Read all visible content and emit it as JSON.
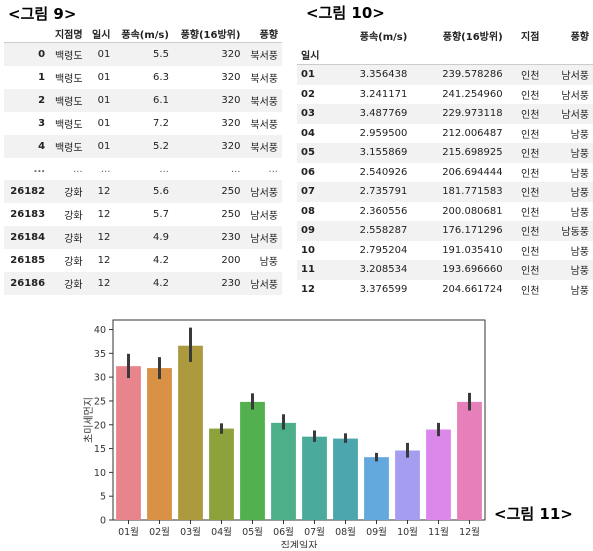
{
  "captions": {
    "fig9": "<그림 9>",
    "fig10": "<그림 10>",
    "fig11": "<그림 11>"
  },
  "table1": {
    "columns": [
      "",
      "지점명",
      "일시",
      "풍속(m/s)",
      "풍향(16방위)",
      "풍향"
    ],
    "rows": [
      [
        "0",
        "백령도",
        "01",
        "5.5",
        "320",
        "북서풍"
      ],
      [
        "1",
        "백령도",
        "01",
        "6.3",
        "320",
        "북서풍"
      ],
      [
        "2",
        "백령도",
        "01",
        "6.1",
        "320",
        "북서풍"
      ],
      [
        "3",
        "백령도",
        "01",
        "7.2",
        "320",
        "북서풍"
      ],
      [
        "4",
        "백령도",
        "01",
        "5.2",
        "320",
        "북서풍"
      ],
      [
        "...",
        "...",
        "...",
        "...",
        "...",
        "..."
      ],
      [
        "26182",
        "강화",
        "12",
        "5.6",
        "250",
        "남서풍"
      ],
      [
        "26183",
        "강화",
        "12",
        "5.7",
        "250",
        "남서풍"
      ],
      [
        "26184",
        "강화",
        "12",
        "4.9",
        "230",
        "남서풍"
      ],
      [
        "26185",
        "강화",
        "12",
        "4.2",
        "200",
        "남풍"
      ],
      [
        "26186",
        "강화",
        "12",
        "4.2",
        "230",
        "남서풍"
      ]
    ]
  },
  "table2": {
    "columns": [
      "",
      "풍속(m/s)",
      "풍향(16방위)",
      "지점",
      "풍향"
    ],
    "index_name": "일시",
    "rows": [
      [
        "01",
        "3.356438",
        "239.578286",
        "인천",
        "남서풍"
      ],
      [
        "02",
        "3.241171",
        "241.254960",
        "인천",
        "남서풍"
      ],
      [
        "03",
        "3.487769",
        "229.973118",
        "인천",
        "남서풍"
      ],
      [
        "04",
        "2.959500",
        "212.006487",
        "인천",
        "남풍"
      ],
      [
        "05",
        "3.155869",
        "215.698925",
        "인천",
        "남풍"
      ],
      [
        "06",
        "2.540926",
        "206.694444",
        "인천",
        "남풍"
      ],
      [
        "07",
        "2.735791",
        "181.771583",
        "인천",
        "남풍"
      ],
      [
        "08",
        "2.360556",
        "200.080681",
        "인천",
        "남풍"
      ],
      [
        "09",
        "2.558287",
        "176.171296",
        "인천",
        "남동풍"
      ],
      [
        "10",
        "2.795204",
        "191.035410",
        "인천",
        "남풍"
      ],
      [
        "11",
        "3.208534",
        "193.696660",
        "인천",
        "남풍"
      ],
      [
        "12",
        "3.376599",
        "204.661724",
        "인천",
        "남풍"
      ]
    ]
  },
  "chart_data": {
    "type": "bar",
    "categories": [
      "01월",
      "02월",
      "03월",
      "04월",
      "05월",
      "06월",
      "07월",
      "08월",
      "09월",
      "10월",
      "11월",
      "12월"
    ],
    "values": [
      32.3,
      31.9,
      36.6,
      19.2,
      24.8,
      20.4,
      17.5,
      17.1,
      13.2,
      14.6,
      19.0,
      24.8
    ],
    "err_low": [
      29.8,
      29.6,
      33.2,
      18.1,
      23.2,
      19.0,
      16.4,
      16.2,
      12.3,
      13.1,
      17.6,
      23.0
    ],
    "err_high": [
      34.9,
      34.2,
      40.4,
      20.3,
      26.6,
      22.2,
      18.8,
      18.2,
      14.1,
      16.2,
      20.4,
      26.7
    ],
    "colors": [
      "#e8848b",
      "#d99145",
      "#ad9a3f",
      "#8ea23b",
      "#52b04f",
      "#4caf8a",
      "#4aaa9b",
      "#4ba6ad",
      "#64a9dd",
      "#a59ef0",
      "#dc87ea",
      "#e67fba"
    ],
    "xlabel": "집계일자",
    "ylabel": "초미세먼지",
    "ylim": [
      0,
      42
    ],
    "yticks": [
      0,
      5,
      10,
      15,
      20,
      25,
      30,
      35,
      40
    ],
    "grid": false
  }
}
